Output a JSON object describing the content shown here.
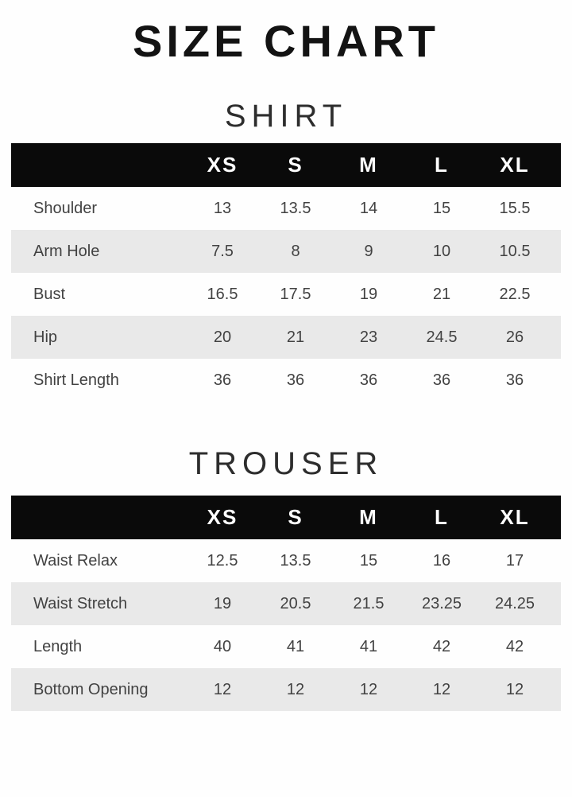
{
  "page_title": "SIZE CHART",
  "colors": {
    "header_bar_bg": "#0a0a0a",
    "header_bar_text": "#ffffff",
    "zebra_row_bg": "#e9e9e9",
    "body_text": "#424242",
    "title_text": "#131313",
    "page_bg": "#fefefe"
  },
  "chart_data": [
    {
      "type": "table",
      "title": "SHIRT",
      "columns": [
        "XS",
        "S",
        "M",
        "L",
        "XL"
      ],
      "rows": [
        {
          "label": "Shoulder",
          "values": [
            "13",
            "13.5",
            "14",
            "15",
            "15.5"
          ]
        },
        {
          "label": "Arm Hole",
          "values": [
            "7.5",
            "8",
            "9",
            "10",
            "10.5"
          ]
        },
        {
          "label": "Bust",
          "values": [
            "16.5",
            "17.5",
            "19",
            "21",
            "22.5"
          ]
        },
        {
          "label": "Hip",
          "values": [
            "20",
            "21",
            "23",
            "24.5",
            "26"
          ]
        },
        {
          "label": "Shirt Length",
          "values": [
            "36",
            "36",
            "36",
            "36",
            "36"
          ]
        }
      ]
    },
    {
      "type": "table",
      "title": "TROUSER",
      "columns": [
        "XS",
        "S",
        "M",
        "L",
        "XL"
      ],
      "rows": [
        {
          "label": "Waist Relax",
          "values": [
            "12.5",
            "13.5",
            "15",
            "16",
            "17"
          ]
        },
        {
          "label": "Waist Stretch",
          "values": [
            "19",
            "20.5",
            "21.5",
            "23.25",
            "24.25"
          ]
        },
        {
          "label": "Length",
          "values": [
            "40",
            "41",
            "41",
            "42",
            "42"
          ]
        },
        {
          "label": "Bottom Opening",
          "values": [
            "12",
            "12",
            "12",
            "12",
            "12"
          ]
        }
      ]
    }
  ]
}
